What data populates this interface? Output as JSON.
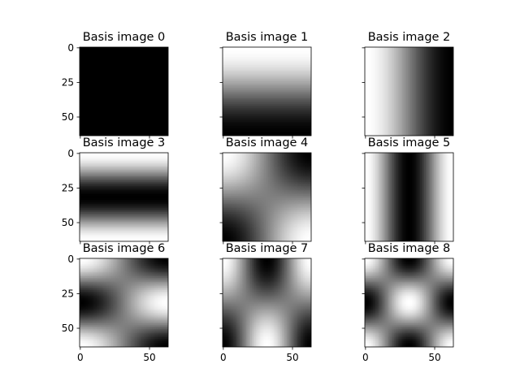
{
  "chart_data": {
    "type": "heatmap",
    "description_grid": "3x3 grid of grayscale basis images",
    "colormap": "gray",
    "image_size": [
      64,
      64
    ],
    "grid": false,
    "shared_axes": true,
    "xticks": [
      0,
      50
    ],
    "yticks": [
      0,
      25,
      50
    ],
    "panels": [
      {
        "title": "Basis image 0",
        "u": 0,
        "v": 0
      },
      {
        "title": "Basis image 1",
        "u": 0,
        "v": 1
      },
      {
        "title": "Basis image 2",
        "u": 1,
        "v": 0
      },
      {
        "title": "Basis image 3",
        "u": 0,
        "v": 2
      },
      {
        "title": "Basis image 4",
        "u": 1,
        "v": 1
      },
      {
        "title": "Basis image 5",
        "u": 2,
        "v": 0
      },
      {
        "title": "Basis image 6",
        "u": 1,
        "v": 2
      },
      {
        "title": "Basis image 7",
        "u": 2,
        "v": 1
      },
      {
        "title": "Basis image 8",
        "u": 2,
        "v": 2
      }
    ]
  }
}
